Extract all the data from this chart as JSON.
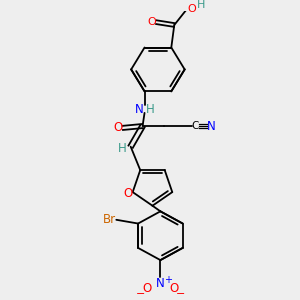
{
  "bg_color": "#eeeeee",
  "atom_colors": {
    "C": "#000000",
    "H": "#3a9a8a",
    "O": "#ff0000",
    "N": "#0000ff",
    "Br": "#cc6600",
    "triple_N": "#0000ff"
  },
  "figsize": [
    3.0,
    3.0
  ],
  "dpi": 100
}
